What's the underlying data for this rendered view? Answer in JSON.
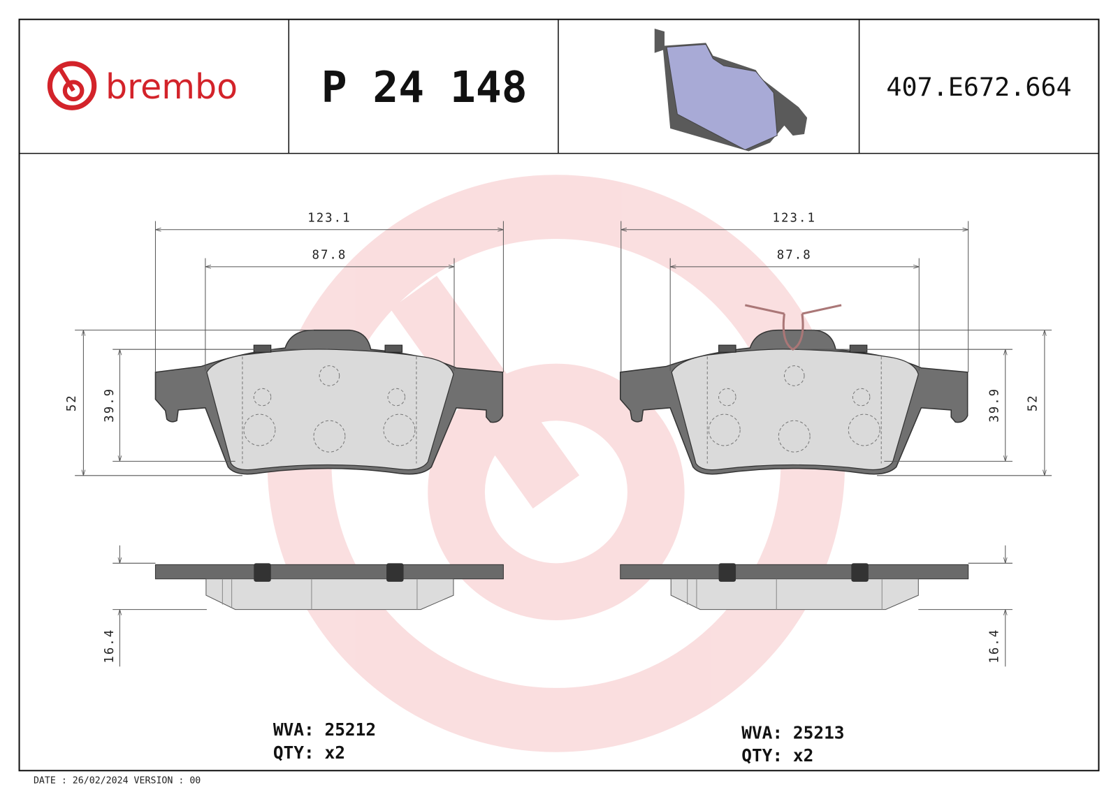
{
  "header": {
    "brand": "brembo",
    "part_number": "P 24 148",
    "code": "407.E672.664"
  },
  "left_view": {
    "width": "123.1",
    "inner_width": "87.8",
    "height": "52",
    "inner_height": "39.9",
    "thickness": "16.4",
    "wva": "WVA: 25212",
    "qty": "QTY: x2"
  },
  "right_view": {
    "width": "123.1",
    "inner_width": "87.8",
    "height": "52",
    "inner_height": "39.9",
    "thickness": "16.4",
    "wva": "WVA: 25213",
    "qty": "QTY: x2"
  },
  "footer": {
    "date_line": "DATE : 26/02/2024 VERSION : 00"
  }
}
